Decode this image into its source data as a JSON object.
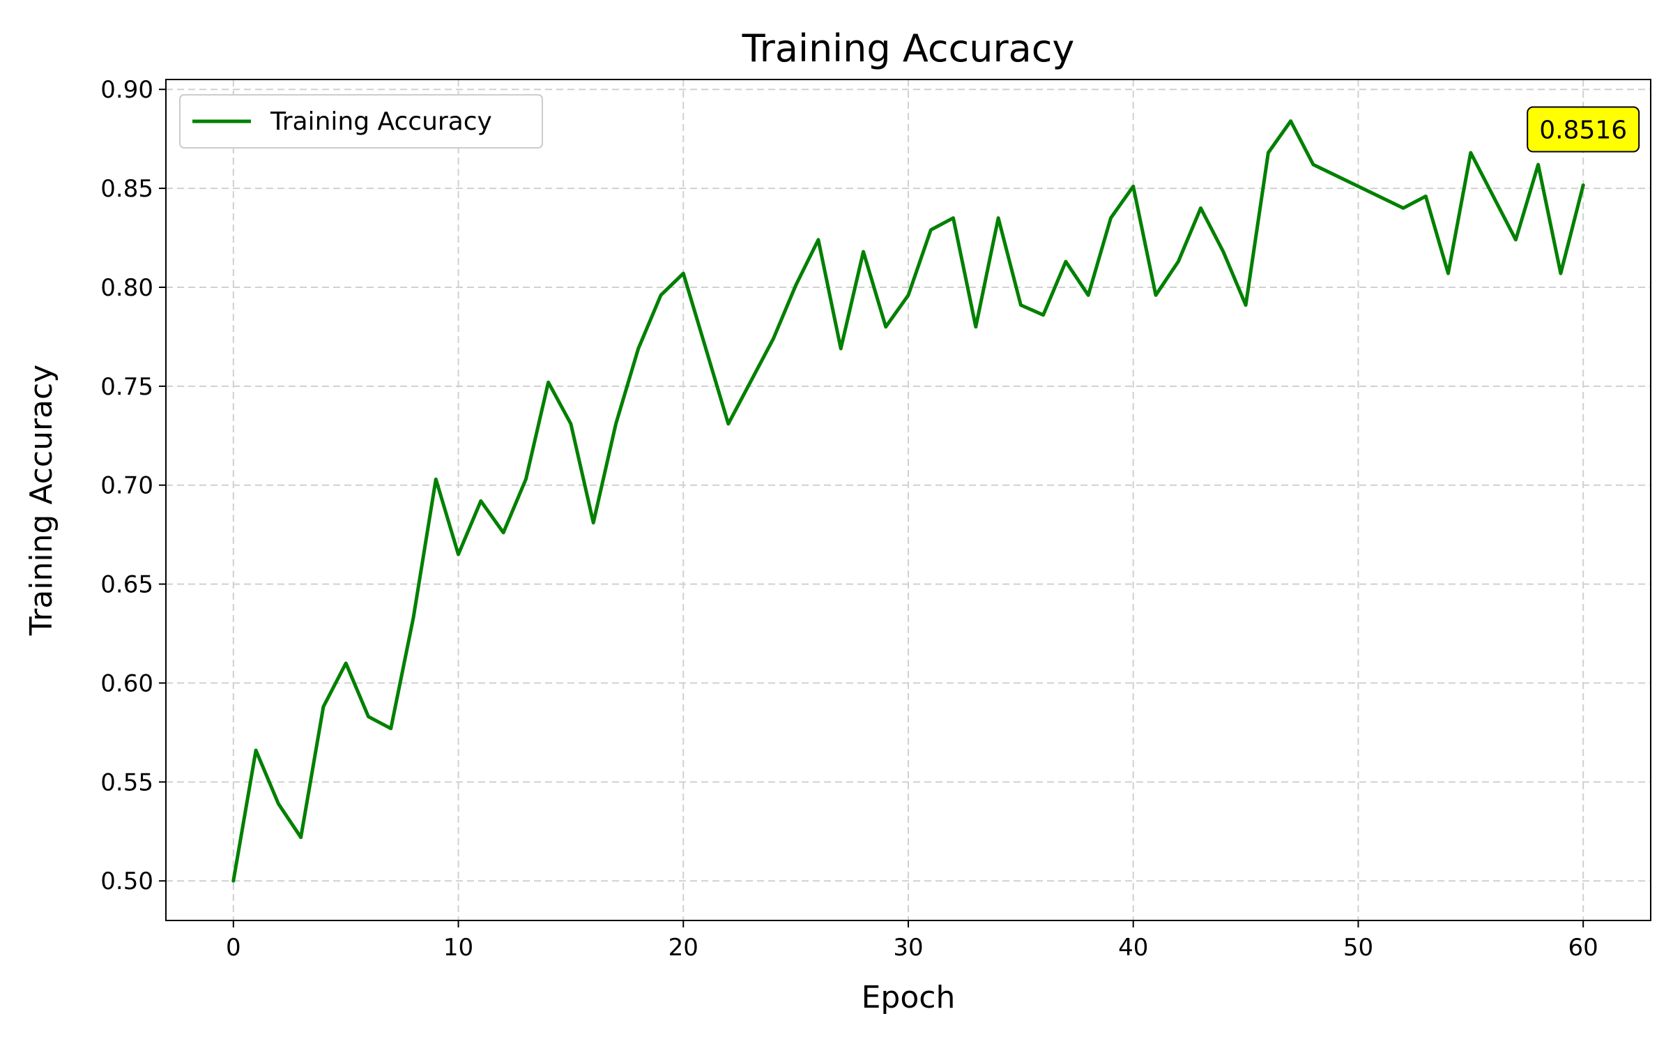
{
  "chart_data": {
    "type": "line",
    "title": "Training Accuracy",
    "xlabel": "Epoch",
    "ylabel": "Training Accuracy",
    "xlim": [
      -3,
      63
    ],
    "ylim": [
      0.48,
      0.905
    ],
    "xticks": [
      0,
      10,
      20,
      30,
      40,
      50,
      60
    ],
    "yticks": [
      0.5,
      0.55,
      0.6,
      0.65,
      0.7,
      0.75,
      0.8,
      0.85,
      0.9
    ],
    "grid": true,
    "legend": "top-left",
    "series": [
      {
        "name": "Training Accuracy",
        "color": "#008000",
        "x": [
          0,
          1,
          2,
          3,
          4,
          5,
          6,
          7,
          8,
          9,
          10,
          11,
          12,
          13,
          14,
          15,
          16,
          17,
          18,
          19,
          20,
          22,
          24,
          25,
          26,
          27,
          28,
          29,
          30,
          31,
          32,
          33,
          34,
          35,
          36,
          37,
          38,
          39,
          40,
          41,
          42,
          43,
          44,
          45,
          46,
          47,
          48,
          52,
          53,
          54,
          55,
          57,
          58,
          59,
          60
        ],
        "y": [
          0.5,
          0.566,
          0.539,
          0.522,
          0.588,
          0.61,
          0.583,
          0.577,
          0.633,
          0.703,
          0.665,
          0.692,
          0.676,
          0.703,
          0.752,
          0.731,
          0.681,
          0.731,
          0.769,
          0.796,
          0.807,
          0.731,
          0.774,
          0.801,
          0.824,
          0.769,
          0.818,
          0.78,
          0.796,
          0.829,
          0.835,
          0.78,
          0.835,
          0.791,
          0.786,
          0.813,
          0.796,
          0.835,
          0.851,
          0.796,
          0.813,
          0.84,
          0.818,
          0.791,
          0.868,
          0.884,
          0.862,
          0.84,
          0.846,
          0.807,
          0.868,
          0.824,
          0.862,
          0.807,
          0.8516
        ]
      }
    ],
    "annotation": {
      "text": "0.8516",
      "x": 60,
      "y": 0.8516,
      "background": "#ffff00"
    }
  }
}
